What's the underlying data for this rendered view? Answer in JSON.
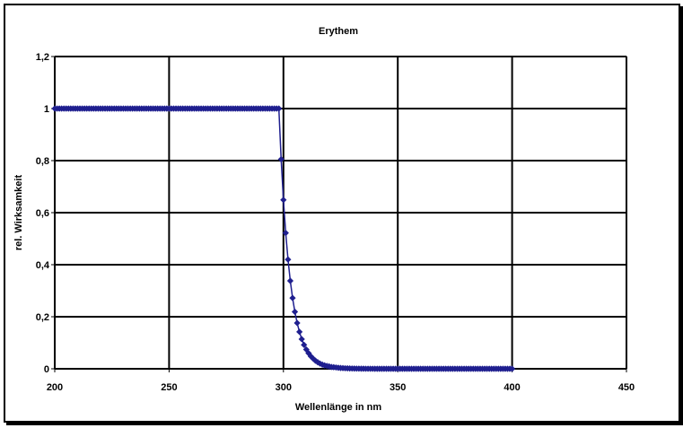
{
  "chart_data": {
    "type": "line",
    "title": "Erythem",
    "xlabel": "Wellenlänge in nm",
    "ylabel": "rel. Wirksamkeit",
    "xlim": [
      200,
      450
    ],
    "ylim": [
      0,
      1.2
    ],
    "xticks": [
      200,
      250,
      300,
      350,
      400,
      450
    ],
    "xtick_labels": [
      "200",
      "250",
      "300",
      "350",
      "400",
      "450"
    ],
    "yticks": [
      0,
      0.2,
      0.4,
      0.6,
      0.8,
      1.0,
      1.2
    ],
    "ytick_labels": [
      "0",
      "0,2",
      "0,4",
      "0,6",
      "0,8",
      "1",
      "1,2"
    ],
    "grid": true,
    "marker": "diamond",
    "series_color": "#1f1f8f",
    "series": [
      {
        "x": [
          200,
          201,
          202,
          203,
          204,
          205,
          206,
          207,
          208,
          209,
          210,
          211,
          212,
          213,
          214,
          215,
          216,
          217,
          218,
          219,
          220,
          221,
          222,
          223,
          224,
          225,
          226,
          227,
          228,
          229,
          230,
          231,
          232,
          233,
          234,
          235,
          236,
          237,
          238,
          239,
          240,
          241,
          242,
          243,
          244,
          245,
          246,
          247,
          248,
          249,
          250,
          251,
          252,
          253,
          254,
          255,
          256,
          257,
          258,
          259,
          260,
          261,
          262,
          263,
          264,
          265,
          266,
          267,
          268,
          269,
          270,
          271,
          272,
          273,
          274,
          275,
          276,
          277,
          278,
          279,
          280,
          281,
          282,
          283,
          284,
          285,
          286,
          287,
          288,
          289,
          290,
          291,
          292,
          293,
          294,
          295,
          296,
          297,
          298,
          299,
          300,
          301,
          302,
          303,
          304,
          305,
          306,
          307,
          308,
          309,
          310,
          311,
          312,
          313,
          314,
          315,
          316,
          317,
          318,
          319,
          320,
          321,
          322,
          323,
          324,
          325,
          326,
          327,
          328,
          329,
          330,
          331,
          332,
          333,
          334,
          335,
          336,
          337,
          338,
          339,
          340,
          341,
          342,
          343,
          344,
          345,
          346,
          347,
          348,
          349,
          350,
          351,
          352,
          353,
          354,
          355,
          356,
          357,
          358,
          359,
          360,
          361,
          362,
          363,
          364,
          365,
          366,
          367,
          368,
          369,
          370,
          371,
          372,
          373,
          374,
          375,
          376,
          377,
          378,
          379,
          380,
          381,
          382,
          383,
          384,
          385,
          386,
          387,
          388,
          389,
          390,
          391,
          392,
          393,
          394,
          395,
          396,
          397,
          398,
          399,
          400
        ],
        "y": [
          1,
          1,
          1,
          1,
          1,
          1,
          1,
          1,
          1,
          1,
          1,
          1,
          1,
          1,
          1,
          1,
          1,
          1,
          1,
          1,
          1,
          1,
          1,
          1,
          1,
          1,
          1,
          1,
          1,
          1,
          1,
          1,
          1,
          1,
          1,
          1,
          1,
          1,
          1,
          1,
          1,
          1,
          1,
          1,
          1,
          1,
          1,
          1,
          1,
          1,
          1,
          1,
          1,
          1,
          1,
          1,
          1,
          1,
          1,
          1,
          1,
          1,
          1,
          1,
          1,
          1,
          1,
          1,
          1,
          1,
          1,
          1,
          1,
          1,
          1,
          1,
          1,
          1,
          1,
          1,
          1,
          1,
          1,
          1,
          1,
          1,
          1,
          1,
          1,
          1,
          1,
          1,
          1,
          1,
          1,
          1,
          1,
          1,
          1,
          0.805,
          0.649,
          0.522,
          0.42,
          0.338,
          0.272,
          0.219,
          0.176,
          0.142,
          0.114,
          0.092,
          0.074,
          0.06,
          0.048,
          0.039,
          0.031,
          0.025,
          0.02,
          0.016,
          0.013,
          0.011,
          0.009,
          0.007,
          0.006,
          0.005,
          0.004,
          0.003,
          0.0026,
          0.002,
          0.0017,
          0.0014,
          0.0011,
          0.0009,
          0.0007,
          0.0006,
          0.0005,
          0.0004,
          0.0003,
          0.0003,
          0.0002,
          0.0002,
          0.0001,
          0.0001,
          0.0001,
          0,
          0,
          0,
          0,
          0,
          0,
          0,
          0,
          0,
          0,
          0,
          0,
          0,
          0,
          0,
          0,
          0,
          0,
          0,
          0,
          0,
          0,
          0,
          0,
          0,
          0,
          0,
          0,
          0,
          0,
          0,
          0,
          0,
          0,
          0,
          0,
          0,
          0,
          0,
          0,
          0,
          0,
          0,
          0,
          0,
          0,
          0,
          0,
          0,
          0,
          0,
          0,
          0,
          0,
          0,
          0,
          0,
          0
        ]
      }
    ]
  }
}
